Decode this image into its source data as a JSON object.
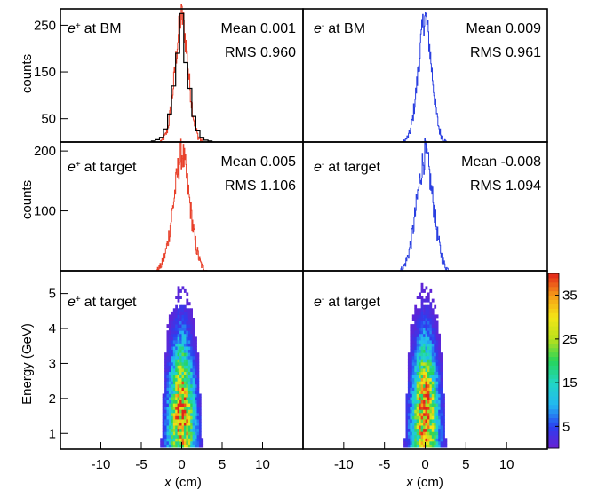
{
  "chart_data": [
    {
      "type": "histogram",
      "panel": "top-left",
      "label_particle": "e",
      "label_charge": "+",
      "label_rest": "at BM",
      "stats": {
        "mean": "Mean 0.001",
        "rms": "RMS 0.960"
      },
      "ylabel": "counts",
      "yticks": [
        "250",
        "150",
        "50"
      ],
      "ylim": [
        0,
        285
      ],
      "xlim": [
        -15,
        15
      ],
      "color": "#e8402a",
      "overlay_color": "#000000",
      "series": [
        {
          "x": [
            -2.5,
            -2.25,
            -2.0,
            -1.75,
            -1.5,
            -1.25,
            -1.0,
            -0.75,
            -0.5,
            -0.25,
            0.0,
            0.25,
            0.5,
            0.75,
            1.0,
            1.25,
            1.5,
            1.75,
            2.0,
            2.25,
            2.5
          ],
          "values": [
            3,
            8,
            14,
            28,
            52,
            85,
            125,
            170,
            215,
            255,
            272,
            252,
            212,
            168,
            120,
            82,
            50,
            28,
            13,
            6,
            2
          ]
        },
        {
          "name": "overlay",
          "x": [
            -3.5,
            -3.0,
            -2.5,
            -2.0,
            -1.5,
            -1.0,
            -0.5,
            0.0,
            0.5,
            1.0,
            1.5,
            2.0,
            2.5,
            3.0,
            3.5
          ],
          "values": [
            2,
            5,
            10,
            28,
            60,
            120,
            190,
            275,
            170,
            115,
            55,
            24,
            10,
            4,
            2
          ]
        }
      ]
    },
    {
      "type": "histogram",
      "panel": "top-right",
      "label_particle": "e",
      "label_charge": "-",
      "label_rest": "at BM",
      "stats": {
        "mean": "Mean 0.009",
        "rms": "RMS 0.961"
      },
      "ylim": [
        0,
        285
      ],
      "xlim": [
        -15,
        15
      ],
      "color": "#2a3fe0",
      "series": [
        {
          "x": [
            -2.5,
            -2.25,
            -2.0,
            -1.75,
            -1.5,
            -1.25,
            -1.0,
            -0.75,
            -0.5,
            -0.25,
            0.0,
            0.25,
            0.5,
            0.75,
            1.0,
            1.25,
            1.5,
            1.75,
            2.0,
            2.25,
            2.5
          ],
          "values": [
            3,
            8,
            15,
            30,
            55,
            88,
            128,
            172,
            218,
            255,
            270,
            250,
            210,
            165,
            122,
            80,
            48,
            26,
            12,
            5,
            2
          ]
        }
      ]
    },
    {
      "type": "histogram",
      "panel": "middle-left",
      "label_particle": "e",
      "label_charge": "+",
      "label_rest": "at target",
      "stats": {
        "mean": "Mean 0.005",
        "rms": "RMS 1.106"
      },
      "ylabel": "counts",
      "yticks": [
        "200",
        "100"
      ],
      "ylim": [
        0,
        215
      ],
      "xlim": [
        -15,
        15
      ],
      "color": "#e8402a",
      "series": [
        {
          "x": [
            -3.0,
            -2.75,
            -2.5,
            -2.25,
            -2.0,
            -1.75,
            -1.5,
            -1.25,
            -1.0,
            -0.75,
            -0.5,
            -0.25,
            0.0,
            0.25,
            0.5,
            0.75,
            1.0,
            1.25,
            1.5,
            1.75,
            2.0,
            2.25,
            2.5,
            2.75,
            3.0
          ],
          "values": [
            2,
            5,
            10,
            18,
            30,
            46,
            66,
            90,
            115,
            140,
            165,
            185,
            198,
            188,
            166,
            140,
            114,
            88,
            64,
            44,
            28,
            16,
            8,
            4,
            1
          ]
        }
      ]
    },
    {
      "type": "histogram",
      "panel": "middle-right",
      "label_particle": "e",
      "label_charge": "-",
      "label_rest": "at target",
      "stats": {
        "mean": "Mean -0.008",
        "rms": "RMS 1.094"
      },
      "ylim": [
        0,
        215
      ],
      "xlim": [
        -15,
        15
      ],
      "color": "#2a3fe0",
      "series": [
        {
          "x": [
            -3.0,
            -2.75,
            -2.5,
            -2.25,
            -2.0,
            -1.75,
            -1.5,
            -1.25,
            -1.0,
            -0.75,
            -0.5,
            -0.25,
            0.0,
            0.25,
            0.5,
            0.75,
            1.0,
            1.25,
            1.5,
            1.75,
            2.0,
            2.25,
            2.5,
            2.75,
            3.0
          ],
          "values": [
            2,
            5,
            10,
            19,
            31,
            48,
            68,
            92,
            118,
            142,
            166,
            184,
            196,
            186,
            164,
            138,
            112,
            86,
            62,
            42,
            26,
            14,
            7,
            3,
            1
          ]
        }
      ]
    },
    {
      "type": "heatmap",
      "panel": "bottom-left",
      "label_particle": "e",
      "label_charge": "+",
      "label_rest": "at target",
      "ylabel": "Energy (GeV)",
      "yticks": [
        "5",
        "4",
        "3",
        "2",
        "1"
      ],
      "ytick_values": [
        5,
        4,
        3,
        2,
        1
      ],
      "ylim": [
        0.55,
        5.65
      ],
      "xlabel_italic": "x",
      "xlabel_rest": " (cm)",
      "xticks": [
        "-10",
        "-5",
        "0",
        "5",
        "10"
      ],
      "xtick_values": [
        -10,
        -5,
        0,
        5,
        10
      ],
      "xlim": [
        -15,
        15
      ],
      "x_range": [
        -3.2,
        3.2
      ],
      "y_range": [
        0.6,
        5.3
      ],
      "peak_count": 38
    },
    {
      "type": "heatmap",
      "panel": "bottom-right",
      "label_particle": "e",
      "label_charge": "-",
      "label_rest": "at target",
      "xlabel_italic": "x",
      "xlabel_rest": " (cm)",
      "xticks": [
        "-10",
        "-5",
        "0",
        "5",
        "10"
      ],
      "xtick_values": [
        -10,
        -5,
        0,
        5,
        10
      ],
      "xlim": [
        -15,
        15
      ],
      "x_range": [
        -3.2,
        3.2
      ],
      "y_range": [
        0.6,
        5.3
      ],
      "peak_count": 38
    }
  ],
  "colorbar": {
    "ticks": [
      "35",
      "25",
      "15",
      "5"
    ],
    "tick_values": [
      35,
      25,
      15,
      5
    ],
    "range": [
      0,
      40
    ],
    "colors": [
      "#6a1fd1",
      "#2b3ff0",
      "#22b8f2",
      "#21d6c4",
      "#27d45a",
      "#b8e01c",
      "#f4e516",
      "#f59b18",
      "#e2231a"
    ]
  }
}
